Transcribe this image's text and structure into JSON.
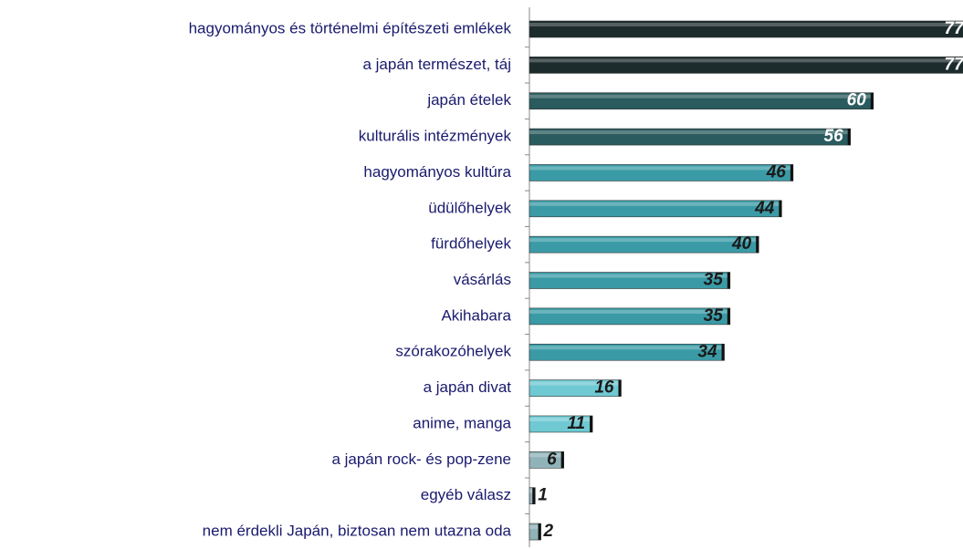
{
  "chart_data": {
    "type": "bar",
    "orientation": "horizontal",
    "categories": [
      "hagyományos és történelmi építészeti emlékek",
      "a japán természet, táj",
      "japán ételek",
      "kulturális intézmények",
      "hagyományos kultúra",
      "üdülőhelyek",
      "fürdőhelyek",
      "vásárlás",
      "Akihabara",
      "szórakozóhelyek",
      "a japán divat",
      "anime, manga",
      "a japán rock- és pop-zene",
      "egyéb válasz",
      "nem érdekli Japán, biztosan nem utazna oda"
    ],
    "values": [
      77,
      77,
      60,
      56,
      46,
      44,
      40,
      35,
      35,
      34,
      16,
      11,
      6,
      1,
      2
    ],
    "colors": [
      "#1c2b2c",
      "#1c2b2c",
      "#2a5b5e",
      "#2a5b5e",
      "#3a9ba6",
      "#3a9ba6",
      "#3a9ba6",
      "#3a9ba6",
      "#3a9ba6",
      "#3a9ba6",
      "#6fc9d3",
      "#6fc9d3",
      "#8fb3b8",
      "#8fb3b8",
      "#8fb3b8"
    ]
  }
}
